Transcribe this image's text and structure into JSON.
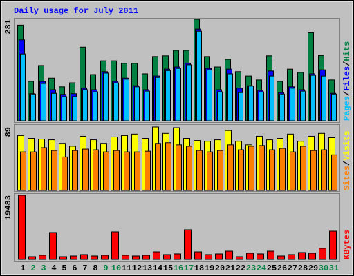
{
  "chart_data": [
    {
      "type": "bar",
      "title": "Daily usage for July 2011",
      "title_color": "#0000ff",
      "ylim": [
        0,
        281
      ],
      "yticks": [
        281
      ],
      "legend_separator": "/",
      "series": [
        {
          "name": "Hits",
          "color": "#008040",
          "values": [
            265,
            109,
            153,
            118,
            94,
            105,
            204,
            128,
            166,
            166,
            159,
            159,
            130,
            178,
            180,
            195,
            195,
            281,
            178,
            149,
            170,
            136,
            124,
            113,
            180,
            109,
            143,
            134,
            244,
            181,
            113
          ]
        },
        {
          "name": "Files",
          "color": "#0000ff",
          "values": [
            224,
            75,
            109,
            86,
            73,
            75,
            90,
            86,
            136,
            109,
            118,
            97,
            86,
            124,
            143,
            149,
            159,
            254,
            145,
            86,
            143,
            90,
            97,
            84,
            138,
            78,
            94,
            86,
            130,
            141,
            76
          ]
        },
        {
          "name": "Pages",
          "color": "#00c0ff",
          "values": [
            185,
            74,
            103,
            76,
            67,
            67,
            86,
            80,
            132,
            105,
            115,
            94,
            82,
            120,
            139,
            145,
            155,
            248,
            141,
            80,
            130,
            78,
            96,
            80,
            124,
            74,
            90,
            82,
            126,
            124,
            74
          ]
        }
      ]
    },
    {
      "type": "bar",
      "ylim": [
        0,
        89
      ],
      "yticks": [
        89
      ],
      "legend_separator": "/",
      "series": [
        {
          "name": "Visits",
          "color": "#ffff00",
          "values": [
            77,
            73,
            72,
            71,
            66,
            62,
            76,
            71,
            66,
            75,
            77,
            79,
            73,
            89,
            80,
            88,
            73,
            70,
            69,
            71,
            84,
            69,
            64,
            76,
            71,
            73,
            79,
            69,
            76,
            80,
            74
          ]
        },
        {
          "name": "Sites",
          "color": "#ff8000",
          "values": [
            54,
            54,
            60,
            56,
            47,
            56,
            58,
            57,
            54,
            56,
            54,
            54,
            55,
            66,
            67,
            64,
            62,
            56,
            54,
            56,
            64,
            57,
            62,
            63,
            57,
            59,
            54,
            62,
            56,
            57,
            50
          ]
        }
      ]
    },
    {
      "type": "bar",
      "ylim": [
        0,
        19483
      ],
      "yticks": [
        19483
      ],
      "categories": [
        "1",
        "2",
        "3",
        "4",
        "5",
        "6",
        "7",
        "8",
        "9",
        "10",
        "11",
        "12",
        "13",
        "14",
        "15",
        "16",
        "17",
        "18",
        "19",
        "20",
        "21",
        "22",
        "23",
        "24",
        "25",
        "26",
        "27",
        "28",
        "29",
        "30",
        "31"
      ],
      "category_colors": [
        "#000000",
        "#008040",
        "#008040",
        "#000000",
        "#000000",
        "#000000",
        "#000000",
        "#000000",
        "#008040",
        "#008040",
        "#000000",
        "#000000",
        "#000000",
        "#000000",
        "#000000",
        "#008040",
        "#008040",
        "#000000",
        "#000000",
        "#000000",
        "#000000",
        "#000000",
        "#008040",
        "#008040",
        "#000000",
        "#000000",
        "#000000",
        "#000000",
        "#000000",
        "#008040",
        "#008040"
      ],
      "series": [
        {
          "name": "KBytes",
          "color": "#ff0000",
          "values": [
            19483,
            840,
            1260,
            8170,
            840,
            1050,
            1470,
            1050,
            1260,
            8380,
            1260,
            1050,
            1260,
            2300,
            1470,
            1680,
            9010,
            2300,
            1470,
            1680,
            2510,
            840,
            1890,
            1680,
            2510,
            1050,
            1470,
            2100,
            1890,
            3350,
            8590
          ]
        }
      ]
    }
  ]
}
